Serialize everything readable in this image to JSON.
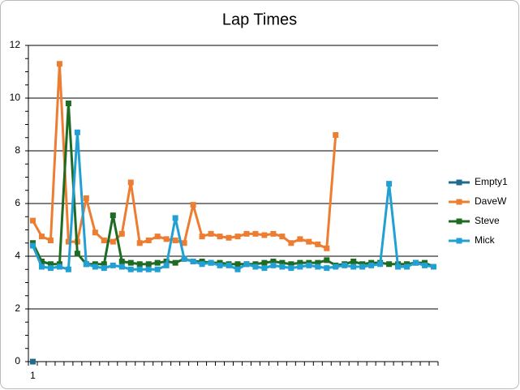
{
  "chart_data": {
    "type": "line",
    "title": "Lap Times",
    "categories": [
      "1",
      null,
      null,
      null,
      null,
      null,
      null,
      null,
      null,
      null,
      null,
      null,
      null,
      null,
      null,
      null,
      null,
      null,
      null,
      null,
      null,
      null,
      null,
      null,
      null,
      null,
      null,
      null,
      null,
      null,
      null,
      null,
      null,
      null,
      null,
      null,
      null,
      null,
      null,
      null,
      null,
      null,
      null,
      null,
      null,
      null
    ],
    "series": [
      {
        "name": "Empty1",
        "color": "#1f6b8e",
        "values": [
          0,
          null,
          null,
          null,
          null,
          null,
          null,
          null,
          null,
          null,
          null,
          null,
          null,
          null,
          null,
          null,
          null,
          null,
          null,
          null,
          null,
          null,
          null,
          null,
          null,
          null,
          null,
          null,
          null,
          null,
          null,
          null,
          null,
          null,
          null,
          null,
          null,
          null,
          null,
          null,
          null,
          null,
          null,
          null,
          null,
          null
        ]
      },
      {
        "name": "DaveW",
        "color": "#ed7d31",
        "values": [
          5.35,
          4.75,
          4.6,
          11.3,
          4.55,
          4.55,
          6.2,
          4.9,
          4.6,
          4.55,
          4.85,
          6.8,
          4.5,
          4.6,
          4.75,
          4.65,
          4.6,
          4.5,
          5.95,
          4.75,
          4.85,
          4.75,
          4.7,
          4.75,
          4.85,
          4.85,
          4.8,
          4.85,
          4.75,
          4.5,
          4.65,
          4.55,
          4.45,
          4.3,
          8.6,
          null,
          null,
          null,
          null,
          null,
          null,
          null,
          null,
          null,
          null,
          null
        ]
      },
      {
        "name": "Steve",
        "color": "#1e6b24",
        "values": [
          4.5,
          3.8,
          3.7,
          3.7,
          9.8,
          4.1,
          3.7,
          3.7,
          3.7,
          5.55,
          3.8,
          3.75,
          3.7,
          3.7,
          3.75,
          3.8,
          3.75,
          3.9,
          3.8,
          3.8,
          3.75,
          3.75,
          3.7,
          3.7,
          3.7,
          3.7,
          3.75,
          3.8,
          3.75,
          3.7,
          3.75,
          3.75,
          3.75,
          3.85,
          3.65,
          3.7,
          3.8,
          3.7,
          3.75,
          3.75,
          3.7,
          3.7,
          3.7,
          3.75,
          3.75,
          3.6
        ]
      },
      {
        "name": "Mick",
        "color": "#22a0d4",
        "values": [
          4.4,
          3.6,
          3.55,
          3.6,
          3.5,
          8.7,
          3.7,
          3.6,
          3.55,
          3.65,
          3.6,
          3.5,
          3.5,
          3.5,
          3.5,
          3.65,
          5.45,
          3.9,
          3.8,
          3.7,
          3.75,
          3.65,
          3.65,
          3.5,
          3.7,
          3.6,
          3.55,
          3.65,
          3.6,
          3.55,
          3.6,
          3.65,
          3.6,
          3.55,
          3.6,
          3.65,
          3.6,
          3.6,
          3.65,
          3.7,
          6.75,
          3.6,
          3.6,
          3.75,
          3.65,
          3.6
        ]
      }
    ],
    "ylim": [
      0,
      12
    ],
    "yticks": [
      0,
      2,
      4,
      6,
      8,
      10,
      12
    ],
    "grid": true,
    "legend": "right"
  }
}
